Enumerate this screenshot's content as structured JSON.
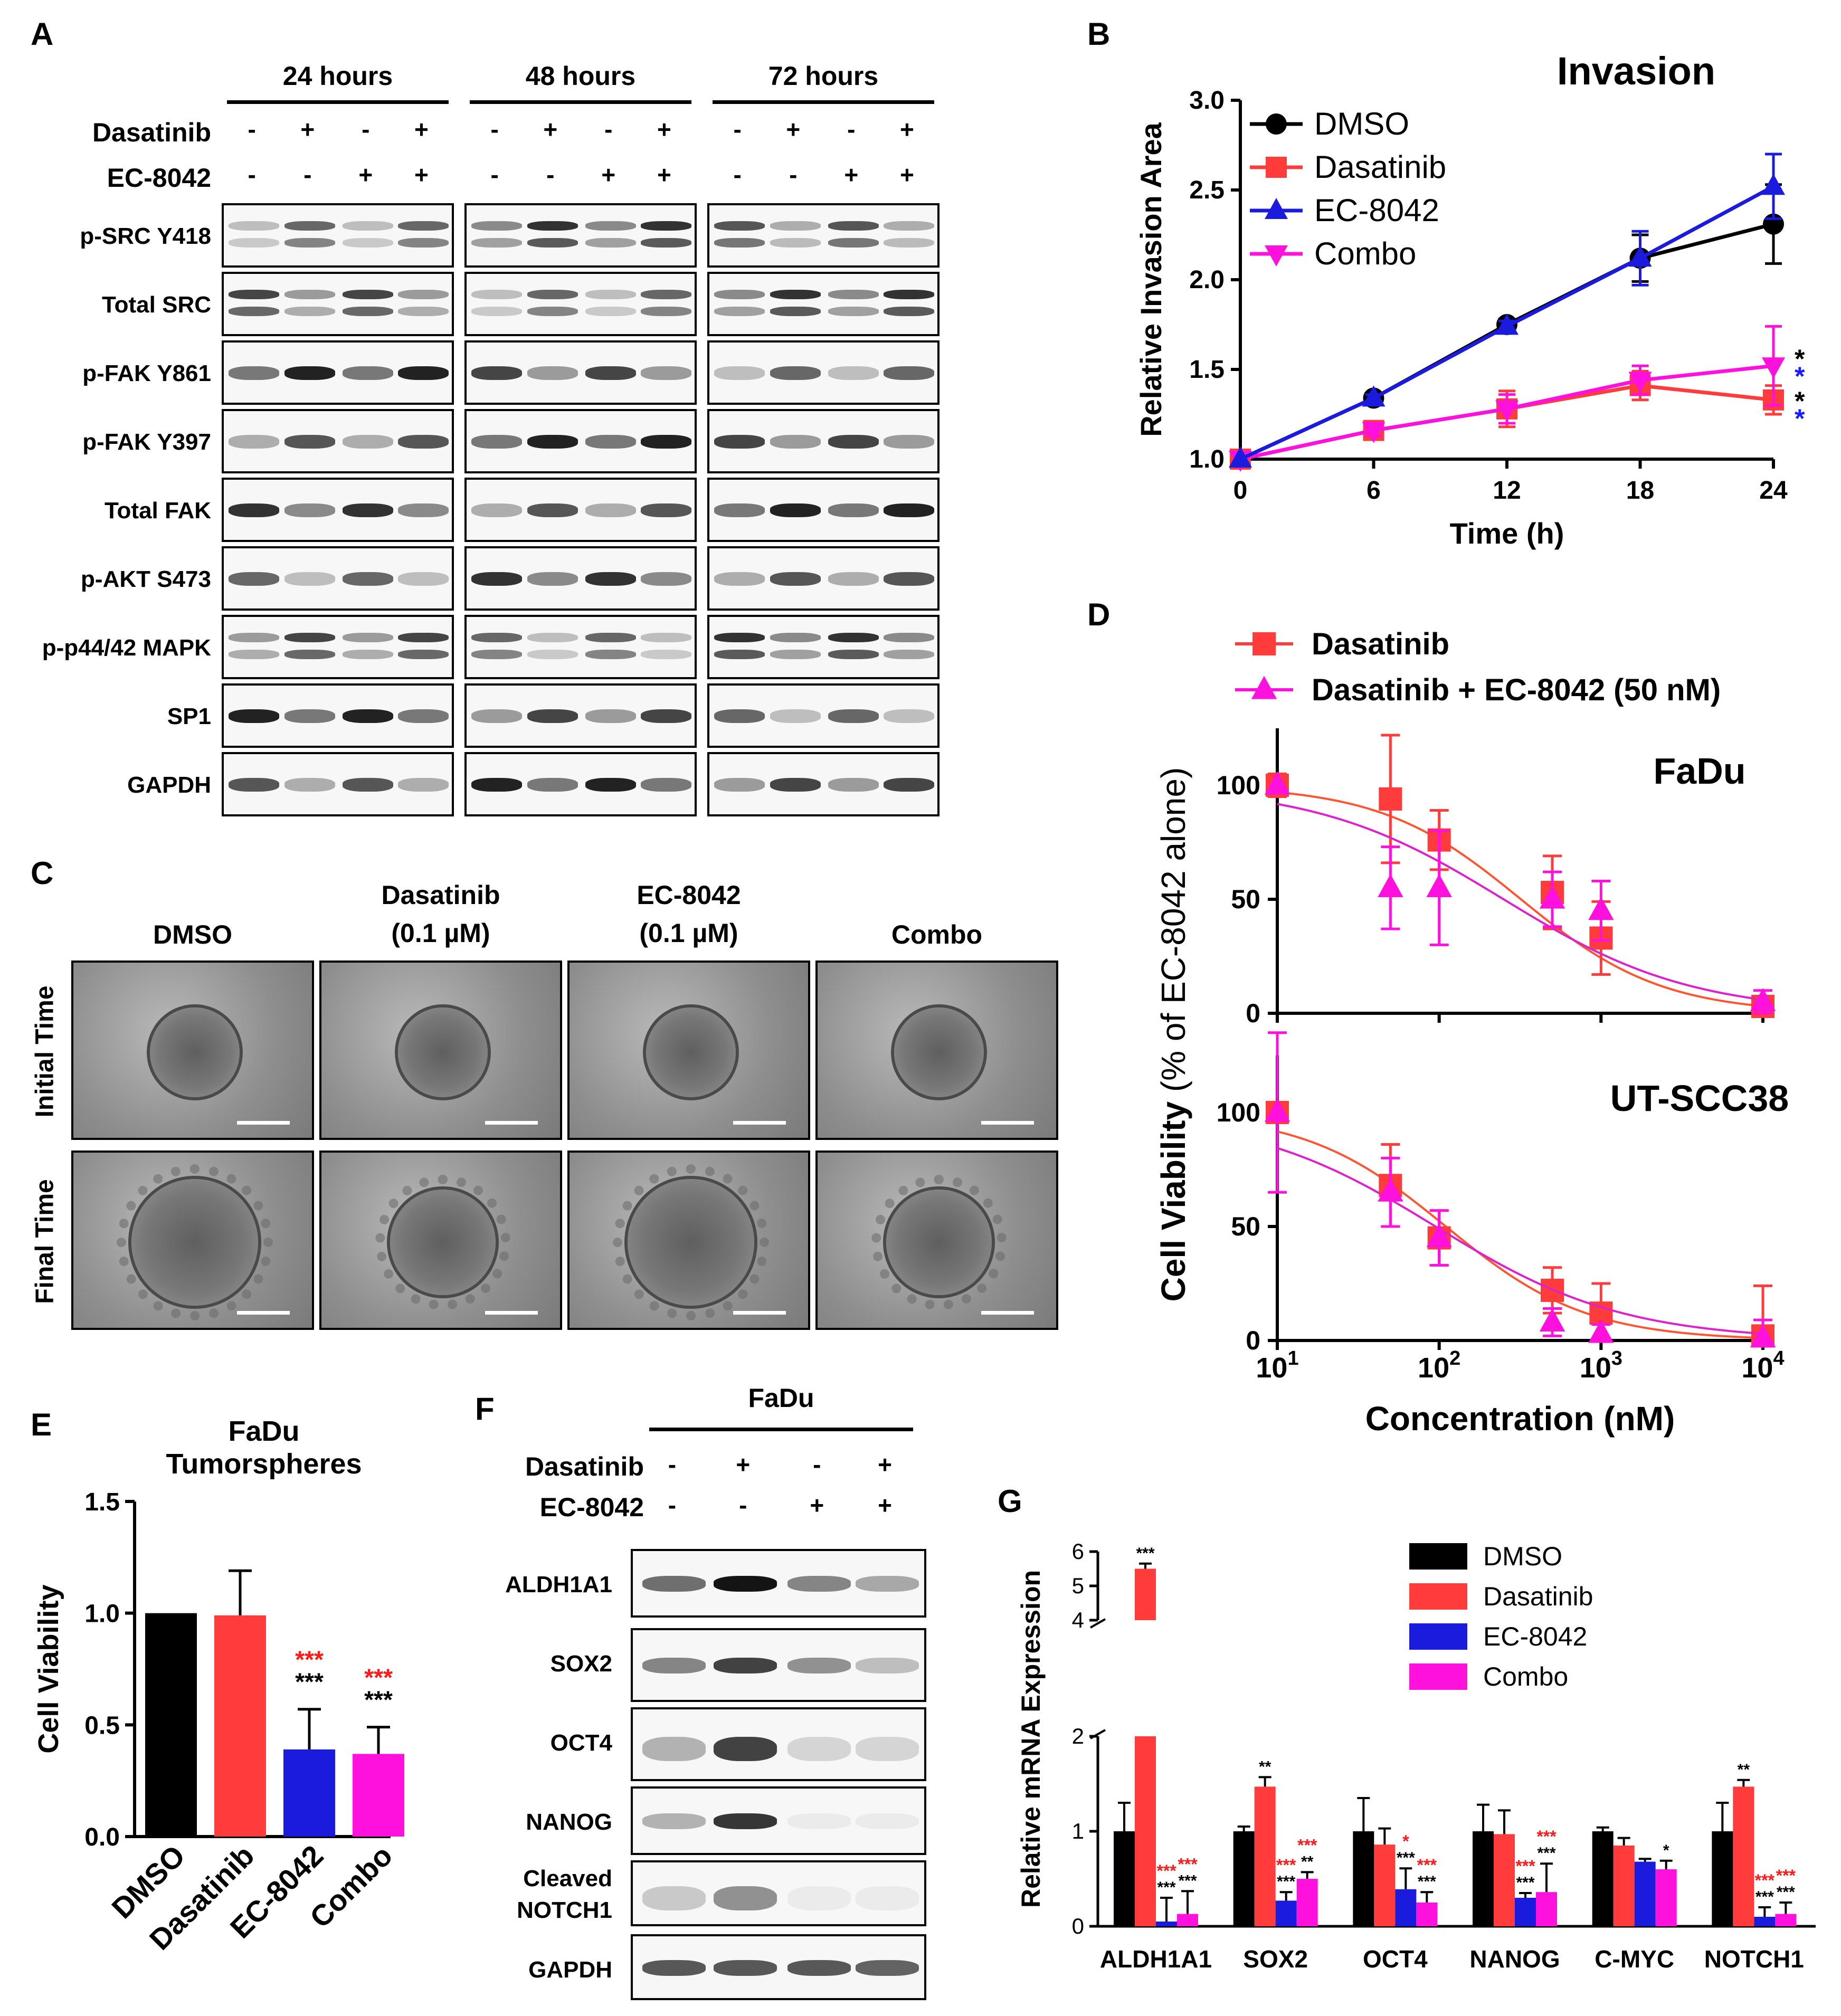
{
  "panel_letters": {
    "A": "A",
    "B": "B",
    "C": "C",
    "D": "D",
    "E": "E",
    "F": "F",
    "G": "G"
  },
  "panel_a": {
    "timepoints": [
      "24 hours",
      "48 hours",
      "72 hours"
    ],
    "treatment_rows": [
      {
        "label": "Dasatinib",
        "pattern": [
          "-",
          "+",
          "-",
          "+"
        ]
      },
      {
        "label": "EC-8042",
        "pattern": [
          "-",
          "-",
          "+",
          "+"
        ]
      }
    ],
    "proteins": [
      "p-SRC Y418",
      "Total SRC",
      "p-FAK Y861",
      "p-FAK Y397",
      "Total FAK",
      "p-AKT S473",
      "p-p44/42 MAPK",
      "SP1",
      "GAPDH"
    ]
  },
  "panel_c": {
    "columns": [
      "DMSO",
      "Dasatinib\n(0.1 µM)",
      "EC-8042\n(0.1 µM)",
      "Combo"
    ],
    "rows": [
      "Initial Time",
      "Final Time"
    ]
  },
  "panel_f": {
    "cell_line": "FaDu",
    "treatment_rows": [
      {
        "label": "Dasatinib",
        "pattern": [
          "-",
          "+",
          "-",
          "+"
        ]
      },
      {
        "label": "EC-8042",
        "pattern": [
          "-",
          "-",
          "+",
          "+"
        ]
      }
    ],
    "proteins": [
      "ALDH1A1",
      "SOX2",
      "OCT4",
      "NANOG",
      "Cleaved\nNOTCH1",
      "GAPDH"
    ]
  },
  "colors": {
    "DMSO": "#000000",
    "Dasatinib": "#ff3b3b",
    "EC-8042": "#1b1bdd",
    "Combo": "#ff11dd",
    "black_star": "#000000",
    "red_star": "#ff1a1a",
    "blue_star": "#1a1aff"
  },
  "chart_data": [
    {
      "id": "B",
      "type": "line",
      "title": "Invasion",
      "xlabel": "Time (h)",
      "ylabel": "Relative Invasion Area",
      "x": [
        0,
        6,
        12,
        18,
        24
      ],
      "xticks": [
        "0",
        "6",
        "12",
        "18",
        "24"
      ],
      "yticks": [
        "1.0",
        "1.5",
        "2.0",
        "2.5",
        "3.0"
      ],
      "xlim": [
        0,
        24
      ],
      "ylim": [
        1.0,
        3.0
      ],
      "legend_position": "top-left",
      "series": [
        {
          "name": "DMSO",
          "marker": "circle",
          "values": [
            1.0,
            1.34,
            1.75,
            2.12,
            2.31
          ],
          "err": [
            0,
            0.02,
            0.03,
            0.13,
            0.22
          ]
        },
        {
          "name": "Dasatinib",
          "marker": "square",
          "values": [
            1.0,
            1.16,
            1.28,
            1.41,
            1.33
          ],
          "err": [
            0,
            0.03,
            0.1,
            0.08,
            0.08
          ]
        },
        {
          "name": "EC-8042",
          "marker": "triangle-up",
          "values": [
            1.0,
            1.34,
            1.74,
            2.12,
            2.52
          ],
          "err": [
            0,
            0.02,
            0.03,
            0.15,
            0.18
          ]
        },
        {
          "name": "Combo",
          "marker": "triangle-down",
          "values": [
            1.0,
            1.16,
            1.28,
            1.44,
            1.52
          ],
          "err": [
            0,
            0.03,
            0.08,
            0.08,
            0.22
          ]
        }
      ],
      "annotations": [
        "*",
        "*",
        "*",
        "*"
      ]
    },
    {
      "id": "D",
      "type": "line",
      "xlabel": "Concentration (nM)",
      "ylabel": "Cell Viability (% of EC-8042 alone)",
      "xscale": "log",
      "x": [
        10,
        50,
        100,
        500,
        1000,
        10000
      ],
      "xticks": [
        "1",
        "2",
        "3",
        "4"
      ],
      "yticks": [
        "0",
        "50",
        "100"
      ],
      "legend": [
        "Dasatinib",
        "Dasatinib + EC-8042 (50 nM)"
      ],
      "subplots": [
        {
          "title": "FaDu",
          "ylim": [
            0,
            125
          ],
          "series": [
            {
              "name": "Dasatinib",
              "values": [
                100,
                94,
                76,
                53,
                33,
                3
              ],
              "err": [
                5,
                28,
                13,
                16,
                16,
                3
              ],
              "ic50": 320
            },
            {
              "name": "Dasatinib + EC-8042 (50 nM)",
              "values": [
                100,
                55,
                55,
                50,
                45,
                5
              ],
              "err": [
                0,
                18,
                25,
                12,
                13,
                5
              ],
              "ic50": 250
            }
          ]
        },
        {
          "title": "UT-SCC38",
          "ylim": [
            0,
            125
          ],
          "series": [
            {
              "name": "Dasatinib",
              "values": [
                100,
                68,
                45,
                22,
                12,
                2
              ],
              "err": [
                4,
                18,
                12,
                10,
                13,
                22
              ],
              "ic50": 110
            },
            {
              "name": "Dasatinib + EC-8042 (50 nM)",
              "values": [
                100,
                65,
                45,
                8,
                3,
                1
              ],
              "err": [
                35,
                15,
                12,
                6,
                4,
                8
              ],
              "ic50": 95
            }
          ]
        }
      ]
    },
    {
      "id": "E",
      "type": "bar",
      "title": "FaDu\nTumorspheres",
      "ylabel": "Cell Viability",
      "categories": [
        "DMSO",
        "Dasatinib",
        "EC-8042",
        "Combo"
      ],
      "values": [
        1.0,
        0.99,
        0.39,
        0.37
      ],
      "err": [
        0,
        0.2,
        0.18,
        0.12
      ],
      "ylim": [
        0,
        1.5
      ],
      "yticks": [
        "0.0",
        "0.5",
        "1.0",
        "1.5"
      ],
      "sig_red": [
        "",
        "",
        "***",
        "***"
      ],
      "sig_black": [
        "",
        "",
        "***",
        "***"
      ]
    },
    {
      "id": "G",
      "type": "bar",
      "ylabel": "Relative mRNA Expression",
      "categories": [
        "ALDH1A1",
        "SOX2",
        "OCT4",
        "NANOG",
        "C-MYC",
        "NOTCH1"
      ],
      "yticks": [
        "0",
        "1",
        "2",
        "4",
        "5",
        "6"
      ],
      "ylim": [
        0,
        6
      ],
      "axis_break": [
        2,
        4
      ],
      "legend": [
        "DMSO",
        "Dasatinib",
        "EC-8042",
        "Combo"
      ],
      "series": [
        {
          "name": "DMSO",
          "values": [
            1.0,
            1.0,
            1.0,
            1.0,
            1.0,
            1.0
          ],
          "err": [
            0.3,
            0.05,
            0.35,
            0.28,
            0.04,
            0.3
          ]
        },
        {
          "name": "Dasatinib",
          "values": [
            5.5,
            1.47,
            0.86,
            0.97,
            0.85,
            1.47
          ],
          "err": [
            0.15,
            0.1,
            0.17,
            0.25,
            0.08,
            0.07
          ]
        },
        {
          "name": "EC-8042",
          "values": [
            0.05,
            0.27,
            0.39,
            0.3,
            0.68,
            0.1
          ],
          "err": [
            0.25,
            0.09,
            0.22,
            0.05,
            0.03,
            0.1
          ]
        },
        {
          "name": "Combo",
          "values": [
            0.13,
            0.5,
            0.25,
            0.36,
            0.6,
            0.13
          ],
          "err": [
            0.24,
            0.07,
            0.11,
            0.3,
            0.09,
            0.12
          ]
        }
      ],
      "sig_black": [
        [
          "",
          "***",
          "***",
          "***"
        ],
        [
          "",
          "**",
          "***",
          "**"
        ],
        [
          "",
          "",
          "***",
          "***"
        ],
        [
          "",
          "",
          "***",
          "***"
        ],
        [
          "",
          "",
          "",
          "*"
        ],
        [
          "",
          "**",
          "***",
          "***"
        ]
      ],
      "sig_red": [
        [
          "",
          "",
          "***",
          "***"
        ],
        [
          "",
          "",
          "***",
          "***"
        ],
        [
          "",
          "",
          "*",
          "***"
        ],
        [
          "",
          "",
          "***",
          "***"
        ],
        [
          "",
          "",
          "",
          ""
        ],
        [
          "",
          "",
          "***",
          "***"
        ]
      ]
    }
  ]
}
